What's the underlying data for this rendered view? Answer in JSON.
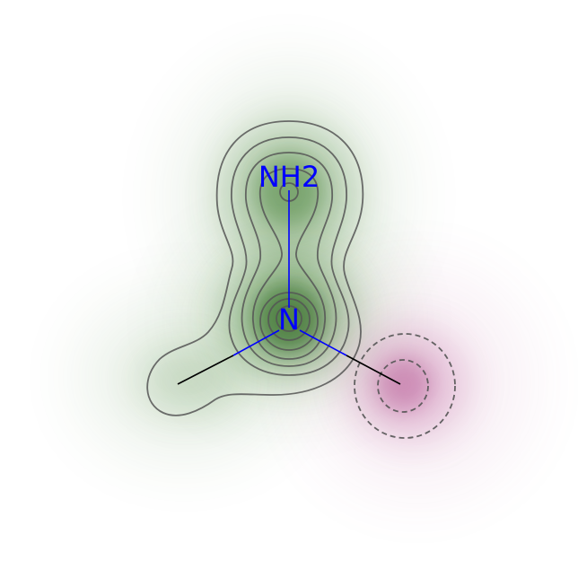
{
  "molecule": {
    "atoms": [
      {
        "id": "nh2",
        "label": "NH2",
        "element": "N",
        "color": "#0000ff"
      },
      {
        "id": "n",
        "label": "N",
        "element": "N",
        "color": "#0000ff"
      },
      {
        "id": "c1",
        "label": "",
        "element": "C",
        "color": "#000000"
      },
      {
        "id": "c2",
        "label": "",
        "element": "C",
        "color": "#000000"
      }
    ],
    "bonds": [
      {
        "from": "nh2",
        "to": "n"
      },
      {
        "from": "n",
        "to": "c1"
      },
      {
        "from": "n",
        "to": "c2"
      }
    ]
  },
  "colors": {
    "positive": "#3a7a2a",
    "negative": "#b0468a",
    "contour": "#555555",
    "heteroatom": "#0000ff",
    "bond": "#000000"
  }
}
